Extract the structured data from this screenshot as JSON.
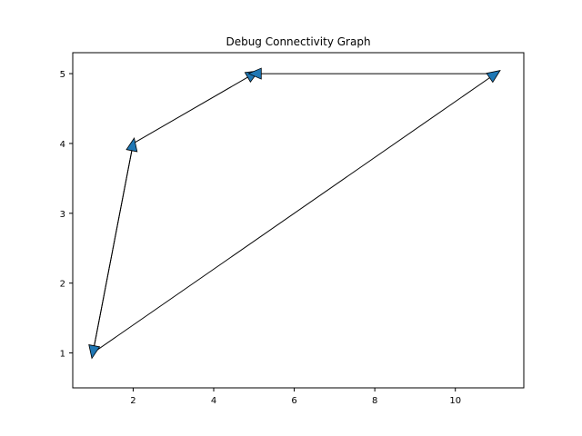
{
  "chart_data": {
    "type": "directed-graph",
    "title": "Debug Connectivity Graph",
    "xlabel": "",
    "ylabel": "",
    "xlim": [
      0.5,
      11.7
    ],
    "ylim": [
      0.5,
      5.3
    ],
    "x_ticks": [
      2,
      4,
      6,
      8,
      10
    ],
    "y_ticks": [
      1,
      2,
      3,
      4,
      5
    ],
    "grid": false,
    "nodes": [
      {
        "x": 1,
        "y": 1
      },
      {
        "x": 2,
        "y": 4
      },
      {
        "x": 5,
        "y": 5
      },
      {
        "x": 11,
        "y": 5
      }
    ],
    "edges": [
      {
        "from": [
          1,
          1
        ],
        "to": [
          2,
          4
        ]
      },
      {
        "from": [
          2,
          4
        ],
        "to": [
          5,
          5
        ]
      },
      {
        "from": [
          11,
          5
        ],
        "to": [
          5,
          5
        ]
      },
      {
        "from": [
          1,
          1
        ],
        "to": [
          11,
          5
        ]
      },
      {
        "from": [
          2,
          4
        ],
        "to": [
          1,
          1
        ]
      }
    ],
    "arrow_color": "#1f77b4",
    "line_color": "#000000"
  }
}
